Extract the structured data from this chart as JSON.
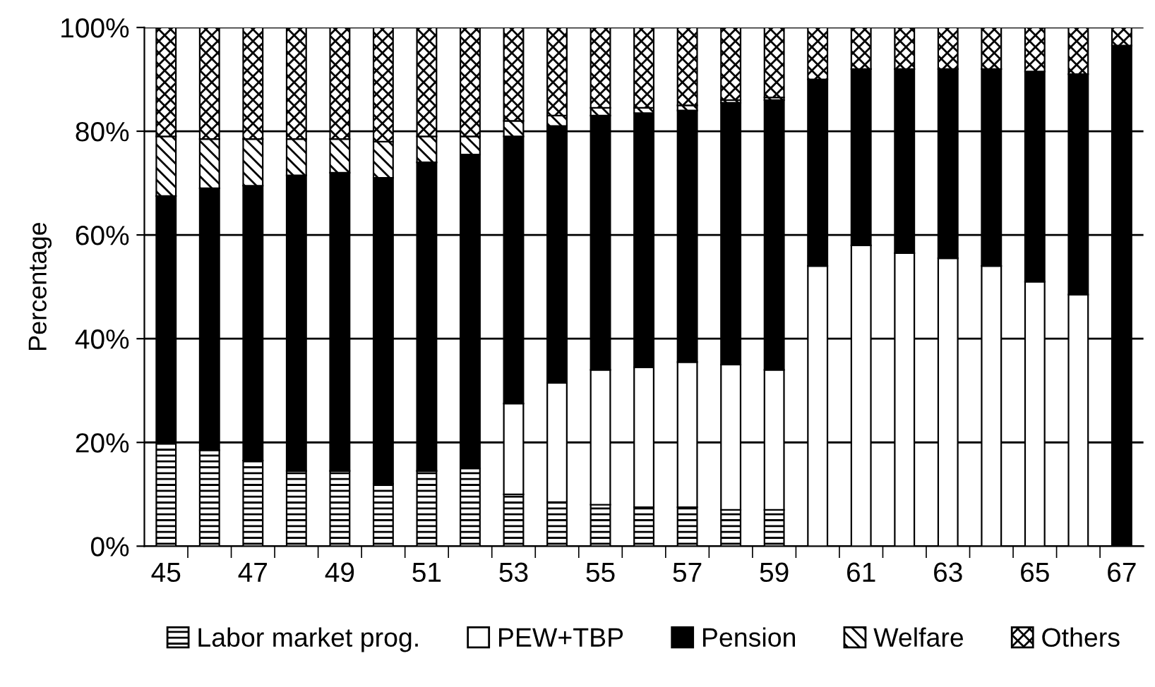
{
  "chart_data": {
    "type": "bar",
    "stacked": true,
    "ylabel": "Percentage",
    "categories": [
      "45",
      null,
      "47",
      null,
      "49",
      null,
      "51",
      null,
      "53",
      null,
      "55",
      null,
      "57",
      null,
      "59",
      null,
      "61",
      null,
      "63",
      null,
      "65",
      null,
      "67"
    ],
    "series": [
      {
        "name": "Labor market prog.",
        "color": "#000000",
        "values": [
          20,
          18.5,
          16.5,
          14.5,
          14.5,
          12,
          14.5,
          15,
          10,
          8.5,
          8,
          7.5,
          7.5,
          7,
          7,
          null,
          null,
          null,
          null,
          null,
          null,
          null,
          null
        ]
      },
      {
        "name": "PEW+TBP",
        "color": "#ffffff",
        "values": [
          null,
          null,
          null,
          null,
          null,
          null,
          null,
          null,
          17.5,
          23,
          26,
          27,
          28,
          28,
          27,
          54,
          58,
          56.5,
          55.5,
          54,
          51,
          48.5,
          null
        ]
      },
      {
        "name": "Pension",
        "color": "#000000",
        "values": [
          47.5,
          50.5,
          53,
          57,
          57.5,
          59,
          59.5,
          60.5,
          51.5,
          49.5,
          49,
          49,
          48.5,
          50.5,
          52,
          36,
          34,
          35.5,
          36.5,
          38,
          40.5,
          42.5,
          96.5
        ]
      },
      {
        "name": "Welfare",
        "color": "#000000",
        "values": [
          11.5,
          9.5,
          9,
          7,
          6.5,
          7,
          5,
          3.5,
          3,
          2,
          1.5,
          1,
          1,
          0.5,
          0.5,
          null,
          null,
          null,
          null,
          null,
          null,
          null,
          null
        ]
      },
      {
        "name": "Others",
        "color": "#000000",
        "values": [
          21,
          21.5,
          21.5,
          21.5,
          21.5,
          22,
          21,
          21,
          18,
          17,
          15.5,
          15.5,
          15,
          14,
          13.5,
          10,
          8,
          8,
          8,
          8,
          8.5,
          9,
          3.5
        ]
      }
    ],
    "ylim": [
      0,
      100
    ],
    "yticks": [
      {
        "value": 0,
        "label": "0%"
      },
      {
        "value": 20,
        "label": "20%"
      },
      {
        "value": 40,
        "label": "40%"
      },
      {
        "value": 60,
        "label": "60%"
      },
      {
        "value": 80,
        "label": "80%"
      },
      {
        "value": 100,
        "label": "100%"
      }
    ],
    "grid": "y",
    "legend": "bottom"
  }
}
